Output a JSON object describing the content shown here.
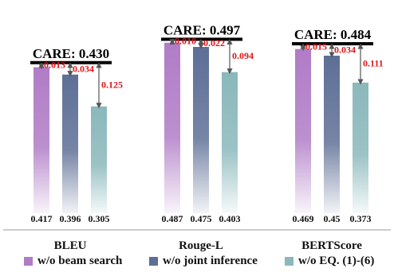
{
  "chart_data": {
    "type": "bar",
    "categories": [
      "BLEU",
      "Rouge-L",
      "BERTScore"
    ],
    "series": [
      {
        "name": "w/o beam search",
        "values": [
          0.417,
          0.487,
          0.469
        ]
      },
      {
        "name": "w/o joint inference",
        "values": [
          0.396,
          0.475,
          0.45
        ]
      },
      {
        "name": "w/o EQ. (1)-(6)",
        "values": [
          0.305,
          0.403,
          0.373
        ]
      }
    ],
    "value_labels": [
      [
        "0.417",
        "0.396",
        "0.305"
      ],
      [
        "0.487",
        "0.475",
        "0.403"
      ],
      [
        "0.469",
        "0.45",
        "0.373"
      ]
    ],
    "care_labels": [
      "CARE: 0.430",
      "CARE: 0.497",
      "CARE: 0.484"
    ],
    "care_values": [
      0.43,
      0.497,
      0.484
    ],
    "differences": [
      [
        "0.013",
        "0.034",
        "0.125"
      ],
      [
        "0.010",
        "0.022",
        "0.094"
      ],
      [
        "0.015",
        "0.034",
        "0.111"
      ]
    ],
    "colors": {
      "series": [
        "#b07cc6",
        "#5e6f96",
        "#8ab8bb"
      ],
      "care_line": "#000000",
      "difference_text": "#e0161b",
      "arrow": "#555555",
      "separator": "#9a9a9a"
    },
    "legend_position": "bottom",
    "grid": false
  }
}
